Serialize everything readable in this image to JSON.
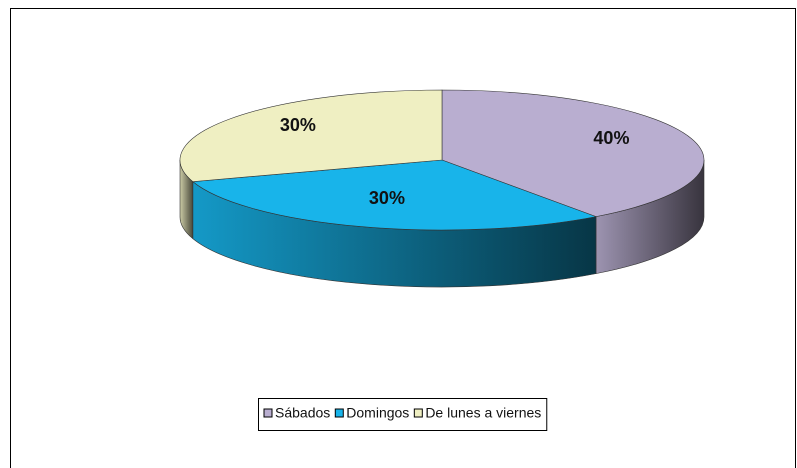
{
  "chart_data": {
    "type": "pie3d",
    "categories": [
      "Sábados",
      "Domingos",
      "De lunes a viernes"
    ],
    "values": [
      40,
      30,
      30
    ],
    "value_labels": [
      "40%",
      "30%",
      "30%"
    ],
    "colors": [
      "#b9aed0",
      "#18b4ea",
      "#efefc2"
    ],
    "legend": "bottom"
  }
}
